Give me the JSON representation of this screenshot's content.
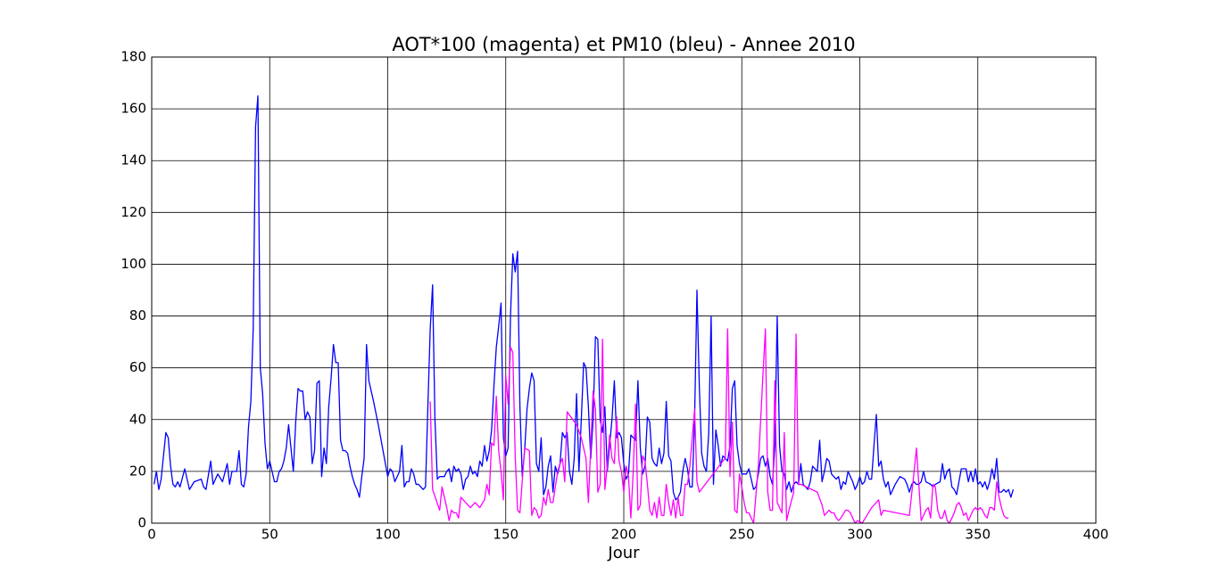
{
  "chart_data": {
    "type": "line",
    "title": "AOT*100 (magenta) et PM10 (bleu) - Annee 2010",
    "x_label": "Jour",
    "xlim": [
      0,
      400
    ],
    "xticks": [
      0,
      50,
      100,
      150,
      200,
      250,
      300,
      350,
      400
    ],
    "ylim": [
      0,
      180
    ],
    "yticks": [
      0,
      20,
      40,
      60,
      80,
      100,
      120,
      140,
      160,
      180
    ],
    "grid": true,
    "series": [
      {
        "color": "#0000ff",
        "x": [
          1,
          2,
          3,
          4,
          5,
          6,
          7,
          8,
          9,
          10,
          11,
          12,
          14,
          16,
          18,
          21,
          22,
          23,
          25,
          26,
          28,
          30,
          32,
          33,
          34,
          36,
          37,
          38,
          39,
          40,
          41,
          42,
          43,
          44,
          45,
          46,
          47,
          48,
          49,
          50,
          51,
          52,
          53,
          54,
          55,
          56,
          57,
          58,
          59,
          60,
          61,
          62,
          63,
          64,
          65,
          66,
          67,
          68,
          69,
          70,
          71,
          72,
          73,
          74,
          75,
          76,
          77,
          78,
          79,
          80,
          81,
          82,
          83,
          84,
          85,
          86,
          87,
          88,
          89,
          90,
          91,
          92,
          94,
          96,
          98,
          100,
          101,
          102,
          103,
          105,
          106,
          107,
          108,
          109,
          110,
          111,
          112,
          113,
          115,
          116,
          117,
          118,
          119,
          120,
          121,
          122,
          124,
          125,
          126,
          127,
          128,
          129,
          130,
          131,
          132,
          133,
          134,
          135,
          136,
          137,
          138,
          139,
          140,
          141,
          142,
          143,
          144,
          145,
          146,
          147,
          148,
          149,
          150,
          151,
          152,
          153,
          154,
          155,
          156,
          157,
          158,
          159,
          160,
          161,
          162,
          163,
          164,
          165,
          166,
          167,
          168,
          169,
          170,
          171,
          172,
          173,
          174,
          175,
          176,
          177,
          178,
          179,
          180,
          181,
          182,
          183,
          184,
          185,
          186,
          187,
          188,
          189,
          190,
          191,
          192,
          193,
          194,
          195,
          196,
          197,
          198,
          199,
          200,
          201,
          202,
          203,
          204,
          205,
          206,
          207,
          208,
          209,
          210,
          211,
          212,
          213,
          214,
          215,
          216,
          217,
          218,
          219,
          220,
          221,
          222,
          223,
          224,
          225,
          226,
          227,
          228,
          229,
          230,
          231,
          232,
          233,
          234,
          235,
          236,
          237,
          238,
          239,
          240,
          241,
          242,
          243,
          244,
          245,
          246,
          247,
          248,
          249,
          250,
          251,
          252,
          253,
          254,
          255,
          256,
          257,
          258,
          259,
          260,
          261,
          262,
          263,
          264,
          265,
          266,
          267,
          268,
          269,
          270,
          271,
          272,
          273,
          274,
          275,
          276,
          278,
          279,
          280,
          281,
          282,
          283,
          284,
          285,
          286,
          287,
          288,
          290,
          291,
          292,
          293,
          294,
          295,
          296,
          297,
          298,
          299,
          300,
          301,
          302,
          303,
          304,
          305,
          306,
          307,
          308,
          309,
          310,
          311,
          312,
          313,
          315,
          317,
          319,
          320,
          321,
          322,
          323,
          324,
          325,
          326,
          327,
          328,
          330,
          331,
          332,
          334,
          335,
          336,
          337,
          338,
          339,
          340,
          341,
          342,
          343,
          344,
          345,
          346,
          347,
          348,
          349,
          350,
          351,
          352,
          353,
          354,
          355,
          356,
          357,
          358,
          359,
          360,
          361,
          362,
          363,
          364,
          365
        ],
        "values": [
          15,
          20,
          13,
          17,
          26,
          35,
          33,
          22,
          15,
          14,
          16,
          14,
          21,
          13,
          16,
          17,
          14,
          13,
          24,
          15,
          19,
          16,
          23,
          15,
          20,
          20,
          28,
          15,
          14,
          19,
          37,
          47,
          75,
          153,
          165,
          60,
          50,
          31,
          21,
          24,
          20,
          16,
          16,
          20,
          21,
          24,
          29,
          38,
          29,
          20,
          39,
          52,
          51,
          51,
          40,
          43,
          41,
          23,
          28,
          54,
          55,
          18,
          29,
          23,
          45,
          56,
          69,
          62,
          62,
          32,
          28,
          28,
          27,
          22,
          18,
          15,
          13,
          10,
          18,
          25,
          69,
          55,
          47,
          38,
          28,
          18,
          21,
          20,
          16,
          20,
          30,
          14,
          16,
          16,
          21,
          19,
          15,
          15,
          13,
          14,
          45,
          75,
          92,
          40,
          17,
          18,
          18,
          20,
          21,
          16,
          22,
          20,
          21,
          19,
          13,
          17,
          18,
          22,
          19,
          20,
          18,
          24,
          22,
          30,
          24,
          28,
          36,
          53,
          68,
          76,
          85,
          33,
          26,
          29,
          80,
          104,
          97,
          105,
          45,
          18,
          28,
          44,
          52,
          58,
          55,
          23,
          20,
          33,
          11,
          14,
          22,
          26,
          12,
          22,
          19,
          23,
          35,
          33,
          35,
          20,
          15,
          25,
          50,
          20,
          40,
          62,
          60,
          45,
          25,
          40,
          72,
          71,
          40,
          35,
          45,
          20,
          30,
          40,
          55,
          33,
          35,
          33,
          23,
          17,
          19,
          34,
          33,
          32,
          55,
          29,
          19,
          22,
          41,
          39,
          25,
          23,
          22,
          29,
          23,
          27,
          47,
          26,
          24,
          12,
          9,
          10,
          12,
          20,
          25,
          21,
          14,
          14,
          40,
          90,
          53,
          27,
          22,
          20,
          35,
          80,
          15,
          36,
          30,
          22,
          26,
          25,
          24,
          30,
          52,
          55,
          30,
          23,
          19,
          19,
          19,
          21,
          17,
          13,
          14,
          19,
          25,
          26,
          22,
          25,
          18,
          15,
          30,
          80,
          30,
          20,
          19,
          13,
          16,
          12,
          15,
          16,
          15,
          23,
          15,
          13,
          16,
          22,
          21,
          20,
          32,
          16,
          20,
          25,
          24,
          19,
          17,
          18,
          13,
          16,
          15,
          20,
          18,
          16,
          13,
          15,
          18,
          15,
          16,
          20,
          17,
          17,
          30,
          42,
          22,
          24,
          17,
          14,
          16,
          11,
          15,
          18,
          17,
          15,
          12,
          15,
          16,
          15,
          15,
          16,
          20,
          16,
          15,
          14,
          15,
          16,
          23,
          17,
          20,
          21,
          14,
          13,
          11,
          16,
          21,
          21,
          21,
          16,
          20,
          16,
          21,
          15,
          16,
          14,
          16,
          13,
          16,
          21,
          17,
          25,
          12,
          12,
          13,
          12,
          13,
          10,
          13
        ]
      },
      {
        "color": "#ff00ff",
        "x": [
          118,
          119,
          122,
          123,
          125,
          126,
          127,
          128,
          129,
          130,
          131,
          133,
          135,
          137,
          139,
          141,
          142,
          143,
          144,
          145,
          146,
          147,
          148,
          149,
          150,
          151,
          152,
          153,
          154,
          155,
          156,
          158,
          160,
          161,
          162,
          163,
          164,
          165,
          166,
          167,
          168,
          169,
          170,
          171,
          172,
          173,
          174,
          175,
          176,
          180,
          182,
          184,
          185,
          187,
          188,
          189,
          190,
          191,
          192,
          193,
          194,
          195,
          196,
          197,
          198,
          199,
          200,
          201,
          202,
          203,
          204,
          205,
          206,
          207,
          208,
          209,
          210,
          211,
          212,
          213,
          214,
          215,
          216,
          217,
          218,
          219,
          220,
          221,
          222,
          223,
          224,
          225,
          226,
          227,
          228,
          230,
          231,
          232,
          242,
          243,
          244,
          245,
          246,
          247,
          248,
          249,
          250,
          251,
          252,
          253,
          255,
          257,
          259,
          260,
          261,
          262,
          263,
          264,
          265,
          266,
          267,
          268,
          269,
          270,
          272,
          273,
          274,
          275,
          282,
          284,
          285,
          286,
          287,
          288,
          289,
          290,
          291,
          292,
          294,
          295,
          296,
          297,
          298,
          299,
          301,
          303,
          305,
          307,
          308,
          309,
          310,
          321,
          323,
          324,
          325,
          326,
          327,
          328,
          329,
          330,
          331,
          332,
          333,
          334,
          335,
          336,
          337,
          338,
          339,
          340,
          341,
          342,
          343,
          344,
          345,
          346,
          347,
          348,
          349,
          350,
          351,
          352,
          353,
          354,
          355,
          356,
          357,
          358,
          359,
          360,
          361,
          362,
          363
        ],
        "values": [
          47,
          13,
          5,
          14,
          6,
          1,
          5,
          4,
          4,
          2,
          10,
          8,
          6,
          8,
          6,
          9,
          15,
          11,
          31,
          30,
          49,
          28,
          20,
          9,
          57,
          46,
          68,
          66,
          26,
          5,
          4,
          29,
          28,
          3,
          6,
          5,
          2,
          3,
          10,
          7,
          13,
          8,
          8,
          14,
          20,
          23,
          25,
          16,
          43,
          38,
          33,
          25,
          8,
          51,
          44,
          12,
          15,
          71,
          13,
          22,
          34,
          25,
          23,
          41,
          24,
          20,
          12,
          22,
          18,
          2,
          20,
          46,
          5,
          7,
          26,
          24,
          15,
          5,
          3,
          8,
          2,
          10,
          3,
          3,
          15,
          8,
          3,
          9,
          2,
          10,
          3,
          3,
          15,
          15,
          22,
          44,
          16,
          12,
          24,
          25,
          75,
          18,
          39,
          5,
          4,
          19,
          14,
          8,
          4,
          4,
          0,
          22,
          58,
          75,
          12,
          5,
          5,
          55,
          8,
          6,
          4,
          35,
          1,
          5,
          12,
          73,
          15,
          15,
          12,
          7,
          3,
          4,
          5,
          4,
          4,
          2,
          1,
          2,
          5,
          5,
          4,
          2,
          0,
          1,
          0,
          3,
          6,
          8,
          9,
          3,
          5,
          3,
          20,
          29,
          15,
          1,
          3,
          5,
          6,
          2,
          15,
          14,
          5,
          2,
          2,
          5,
          1,
          0,
          2,
          4,
          7,
          8,
          6,
          3,
          4,
          1,
          3,
          5,
          6,
          5,
          6,
          5,
          3,
          2,
          6,
          6,
          5,
          16,
          10,
          6,
          3,
          2,
          2
        ]
      }
    ]
  }
}
